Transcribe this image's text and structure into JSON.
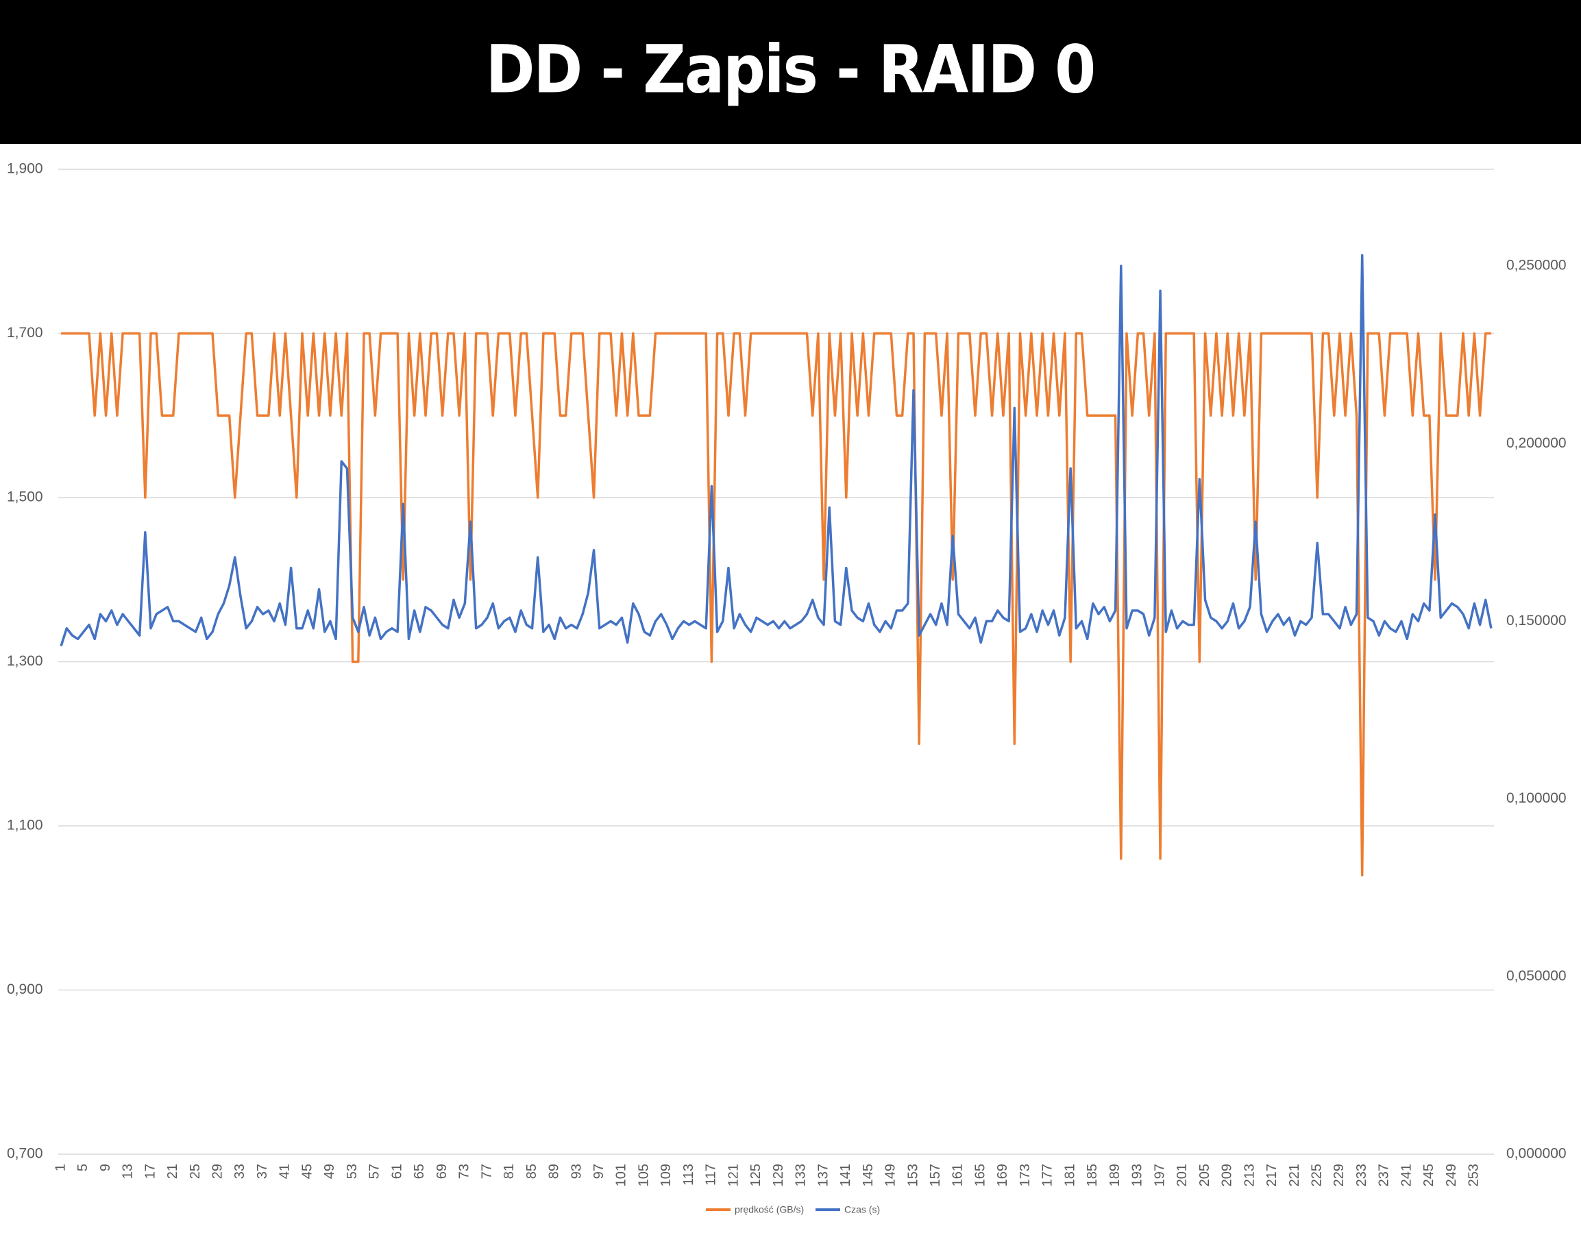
{
  "chart_data": {
    "type": "line",
    "title": "DD - Zapis - RAID 0",
    "categories": [
      "1",
      null,
      null,
      null,
      "5",
      null,
      null,
      null,
      "9",
      null,
      null,
      null,
      "13",
      null,
      null,
      null,
      "17",
      null,
      null,
      null,
      "21",
      null,
      null,
      null,
      "25",
      null,
      null,
      null,
      "29",
      null,
      null,
      null,
      "33",
      null,
      null,
      null,
      "37",
      null,
      null,
      null,
      "41",
      null,
      null,
      null,
      "45",
      null,
      null,
      null,
      "49",
      null,
      null,
      null,
      "53",
      null,
      null,
      null,
      "57",
      null,
      null,
      null,
      "61",
      null,
      null,
      null,
      "65",
      null,
      null,
      null,
      "69",
      null,
      null,
      null,
      "73",
      null,
      null,
      null,
      "77",
      null,
      null,
      null,
      "81",
      null,
      null,
      null,
      "85",
      null,
      null,
      null,
      "89",
      null,
      null,
      null,
      "93",
      null,
      null,
      null,
      "97",
      null,
      null,
      null,
      "101",
      null,
      null,
      null,
      "105",
      null,
      null,
      null,
      "109",
      null,
      null,
      null,
      "113",
      null,
      null,
      null,
      "117",
      null,
      null,
      null,
      "121",
      null,
      null,
      null,
      "125",
      null,
      null,
      null,
      "129",
      null,
      null,
      null,
      "133",
      null,
      null,
      null,
      "137",
      null,
      null,
      null,
      "141",
      null,
      null,
      null,
      "145",
      null,
      null,
      null,
      "149",
      null,
      null,
      null,
      "153",
      null,
      null,
      null,
      "157",
      null,
      null,
      null,
      "161",
      null,
      null,
      null,
      "165",
      null,
      null,
      null,
      "169",
      null,
      null,
      null,
      "173",
      null,
      null,
      null,
      "177",
      null,
      null,
      null,
      "181",
      null,
      null,
      null,
      "185",
      null,
      null,
      null,
      "189",
      null,
      null,
      null,
      "193",
      null,
      null,
      null,
      "197",
      null,
      null,
      null,
      "201",
      null,
      null,
      null,
      "205",
      null,
      null,
      null,
      "209",
      null,
      null,
      null,
      "213",
      null,
      null,
      null,
      "217",
      null,
      null,
      null,
      "221",
      null,
      null,
      null,
      "225",
      null,
      null,
      null,
      "229",
      null,
      null,
      null,
      "233",
      null,
      null,
      null,
      "237",
      null,
      null,
      null,
      "241",
      null,
      null,
      null,
      "245",
      null,
      null,
      null,
      "249",
      null,
      null,
      null,
      "253",
      null,
      null,
      null
    ],
    "series": [
      {
        "name": "prędkość (GB/s)",
        "color": "#ed7d31",
        "values": [
          1.7,
          1.7,
          1.7,
          1.7,
          1.7,
          1.7,
          1.6,
          1.7,
          1.6,
          1.7,
          1.6,
          1.7,
          1.7,
          1.7,
          1.7,
          1.5,
          1.7,
          1.7,
          1.6,
          1.6,
          1.6,
          1.7,
          1.7,
          1.7,
          1.7,
          1.7,
          1.7,
          1.7,
          1.6,
          1.6,
          1.6,
          1.5,
          1.6,
          1.7,
          1.7,
          1.6,
          1.6,
          1.6,
          1.7,
          1.6,
          1.7,
          1.6,
          1.5,
          1.7,
          1.6,
          1.7,
          1.6,
          1.7,
          1.6,
          1.7,
          1.6,
          1.7,
          1.3,
          1.3,
          1.7,
          1.7,
          1.6,
          1.7,
          1.7,
          1.7,
          1.7,
          1.4,
          1.7,
          1.6,
          1.7,
          1.6,
          1.7,
          1.7,
          1.6,
          1.7,
          1.7,
          1.6,
          1.7,
          1.4,
          1.7,
          1.7,
          1.7,
          1.6,
          1.7,
          1.7,
          1.7,
          1.6,
          1.7,
          1.7,
          1.6,
          1.5,
          1.7,
          1.7,
          1.7,
          1.6,
          1.6,
          1.7,
          1.7,
          1.7,
          1.6,
          1.5,
          1.7,
          1.7,
          1.7,
          1.6,
          1.7,
          1.6,
          1.7,
          1.6,
          1.6,
          1.6,
          1.7,
          1.7,
          1.7,
          1.7,
          1.7,
          1.7,
          1.7,
          1.7,
          1.7,
          1.7,
          1.3,
          1.7,
          1.7,
          1.6,
          1.7,
          1.7,
          1.6,
          1.7,
          1.7,
          1.7,
          1.7,
          1.7,
          1.7,
          1.7,
          1.7,
          1.7,
          1.7,
          1.7,
          1.6,
          1.7,
          1.4,
          1.7,
          1.6,
          1.7,
          1.5,
          1.7,
          1.6,
          1.7,
          1.6,
          1.7,
          1.7,
          1.7,
          1.7,
          1.6,
          1.6,
          1.7,
          1.7,
          1.2,
          1.7,
          1.7,
          1.7,
          1.6,
          1.7,
          1.4,
          1.7,
          1.7,
          1.7,
          1.6,
          1.7,
          1.7,
          1.6,
          1.7,
          1.6,
          1.7,
          1.2,
          1.7,
          1.6,
          1.7,
          1.6,
          1.7,
          1.6,
          1.7,
          1.6,
          1.7,
          1.3,
          1.7,
          1.7,
          1.6,
          1.6,
          1.6,
          1.6,
          1.6,
          1.6,
          1.06,
          1.7,
          1.6,
          1.7,
          1.7,
          1.6,
          1.7,
          1.06,
          1.7,
          1.7,
          1.7,
          1.7,
          1.7,
          1.7,
          1.3,
          1.7,
          1.6,
          1.7,
          1.6,
          1.7,
          1.6,
          1.7,
          1.6,
          1.7,
          1.4,
          1.7,
          1.7,
          1.7,
          1.7,
          1.7,
          1.7,
          1.7,
          1.7,
          1.7,
          1.7,
          1.5,
          1.7,
          1.7,
          1.6,
          1.7,
          1.6,
          1.7,
          1.6,
          1.04,
          1.7,
          1.7,
          1.7,
          1.6,
          1.7,
          1.7,
          1.7,
          1.7,
          1.6,
          1.7,
          1.6,
          1.6,
          1.4,
          1.7,
          1.6,
          1.6,
          1.6,
          1.7,
          1.6,
          1.7,
          1.6,
          1.7,
          1.7
        ]
      },
      {
        "name": "Czas (s)",
        "color": "#4472c4",
        "axis": "y2",
        "values": [
          0.143,
          0.148,
          0.146,
          0.145,
          0.147,
          0.149,
          0.145,
          0.152,
          0.15,
          0.153,
          0.149,
          0.152,
          0.15,
          0.148,
          0.146,
          0.175,
          0.148,
          0.152,
          0.153,
          0.154,
          0.15,
          0.15,
          0.149,
          0.148,
          0.147,
          0.151,
          0.145,
          0.147,
          0.152,
          0.155,
          0.16,
          0.168,
          0.157,
          0.148,
          0.15,
          0.154,
          0.152,
          0.153,
          0.15,
          0.155,
          0.149,
          0.165,
          0.148,
          0.148,
          0.153,
          0.148,
          0.159,
          0.147,
          0.15,
          0.145,
          0.195,
          0.193,
          0.151,
          0.147,
          0.154,
          0.146,
          0.151,
          0.145,
          0.147,
          0.148,
          0.147,
          0.183,
          0.145,
          0.153,
          0.147,
          0.154,
          0.153,
          0.151,
          0.149,
          0.148,
          0.156,
          0.151,
          0.155,
          0.178,
          0.148,
          0.149,
          0.151,
          0.155,
          0.148,
          0.15,
          0.151,
          0.147,
          0.153,
          0.149,
          0.148,
          0.168,
          0.147,
          0.149,
          0.145,
          0.151,
          0.148,
          0.149,
          0.148,
          0.152,
          0.158,
          0.17,
          0.148,
          0.149,
          0.15,
          0.149,
          0.151,
          0.144,
          0.155,
          0.152,
          0.147,
          0.146,
          0.15,
          0.152,
          0.149,
          0.145,
          0.148,
          0.15,
          0.149,
          0.15,
          0.149,
          0.148,
          0.188,
          0.147,
          0.15,
          0.165,
          0.148,
          0.152,
          0.149,
          0.147,
          0.151,
          0.15,
          0.149,
          0.15,
          0.148,
          0.15,
          0.148,
          0.149,
          0.15,
          0.152,
          0.156,
          0.151,
          0.149,
          0.182,
          0.15,
          0.149,
          0.165,
          0.153,
          0.151,
          0.15,
          0.155,
          0.149,
          0.147,
          0.15,
          0.148,
          0.153,
          0.153,
          0.155,
          0.215,
          0.146,
          0.149,
          0.152,
          0.149,
          0.155,
          0.149,
          0.174,
          0.152,
          0.15,
          0.148,
          0.151,
          0.144,
          0.15,
          0.15,
          0.153,
          0.151,
          0.15,
          0.21,
          0.147,
          0.148,
          0.152,
          0.147,
          0.153,
          0.149,
          0.153,
          0.146,
          0.151,
          0.193,
          0.148,
          0.15,
          0.145,
          0.155,
          0.152,
          0.154,
          0.15,
          0.153,
          0.25,
          0.148,
          0.153,
          0.153,
          0.152,
          0.146,
          0.151,
          0.243,
          0.147,
          0.153,
          0.148,
          0.15,
          0.149,
          0.149,
          0.19,
          0.156,
          0.151,
          0.15,
          0.148,
          0.15,
          0.155,
          0.148,
          0.15,
          0.154,
          0.178,
          0.152,
          0.147,
          0.15,
          0.152,
          0.149,
          0.151,
          0.146,
          0.15,
          0.149,
          0.151,
          0.172,
          0.152,
          0.152,
          0.15,
          0.148,
          0.154,
          0.149,
          0.152,
          0.253,
          0.151,
          0.15,
          0.146,
          0.15,
          0.148,
          0.147,
          0.15,
          0.145,
          0.152,
          0.15,
          0.155,
          0.153,
          0.18,
          0.151,
          0.153,
          0.155,
          0.154,
          0.152,
          0.148,
          0.155,
          0.149,
          0.156,
          0.148
        ]
      }
    ],
    "ylim": [
      0.7,
      1.9
    ],
    "yticks": [
      {
        "value": 0.7,
        "label": "0,700"
      },
      {
        "value": 0.9,
        "label": "0,900"
      },
      {
        "value": 1.1,
        "label": "1,100"
      },
      {
        "value": 1.3,
        "label": "1,300"
      },
      {
        "value": 1.5,
        "label": "1,500"
      },
      {
        "value": 1.7,
        "label": "1,700"
      },
      {
        "value": 1.9,
        "label": "1,900"
      }
    ],
    "y2lim": [
      0,
      0.2772
    ],
    "y2ticks": [
      {
        "value": 0,
        "label": "0,000000"
      },
      {
        "value": 0.05,
        "label": "0,050000"
      },
      {
        "value": 0.1,
        "label": "0,100000"
      },
      {
        "value": 0.15,
        "label": "0,150000"
      },
      {
        "value": 0.2,
        "label": "0,200000"
      },
      {
        "value": 0.25,
        "label": "0,250000"
      }
    ],
    "grid": true,
    "legend": "bottom"
  }
}
